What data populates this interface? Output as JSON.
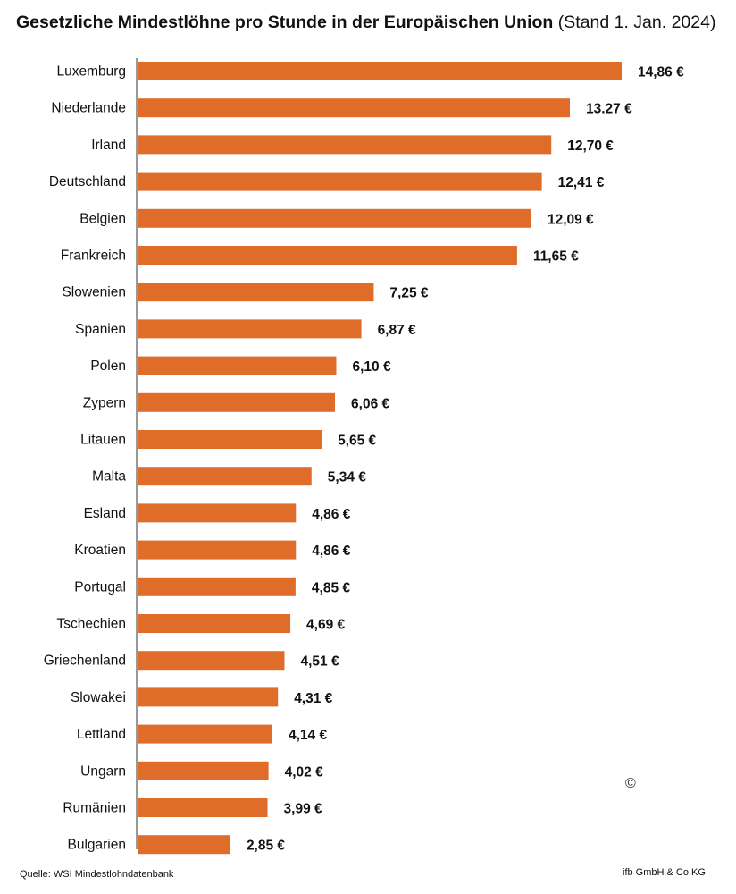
{
  "chart_data": {
    "type": "bar",
    "orientation": "horizontal",
    "title": "Gesetzliche Mindestlöhne pro Stunde in der Europäischen Union",
    "subtitle": "(Stand 1. Jan. 2024)",
    "categories": [
      "Luxemburg",
      "Niederlande",
      "Irland",
      "Deutschland",
      "Belgien",
      "Frankreich",
      "Slowenien",
      "Spanien",
      "Polen",
      "Zypern",
      "Litauen",
      "Malta",
      "Esland",
      "Kroatien",
      "Portugal",
      "Tschechien",
      "Griechenland",
      "Slowakei",
      "Lettland",
      "Ungarn",
      "Rumänien",
      "Bulgarien"
    ],
    "values": [
      14.86,
      13.27,
      12.7,
      12.41,
      12.09,
      11.65,
      7.25,
      6.87,
      6.1,
      6.06,
      5.65,
      5.34,
      4.86,
      4.86,
      4.85,
      4.69,
      4.51,
      4.31,
      4.14,
      4.02,
      3.99,
      2.85
    ],
    "value_labels": [
      "14,86 €",
      "13.27 €",
      "12,70 €",
      "12,41 €",
      "12,09 €",
      "11,65 €",
      "7,25 €",
      "6,87 €",
      "6,10 €",
      "6,06 €",
      "5,65 €",
      "5,34 €",
      "4,86 €",
      "4,86 €",
      "4,85 €",
      "4,69 €",
      "4,51 €",
      "4,31 €",
      "4,14 €",
      "4,02 €",
      "3,99 €",
      "2,85 €"
    ],
    "bar_color": "#E06C2A",
    "xlim": [
      0,
      14.86
    ],
    "grid": false,
    "legend": "none"
  },
  "footer": {
    "source": "Quelle: WSI Mindestlohndatenbank",
    "credit": "ifb GmbH & Co.KG",
    "copyright_symbol": "©"
  }
}
